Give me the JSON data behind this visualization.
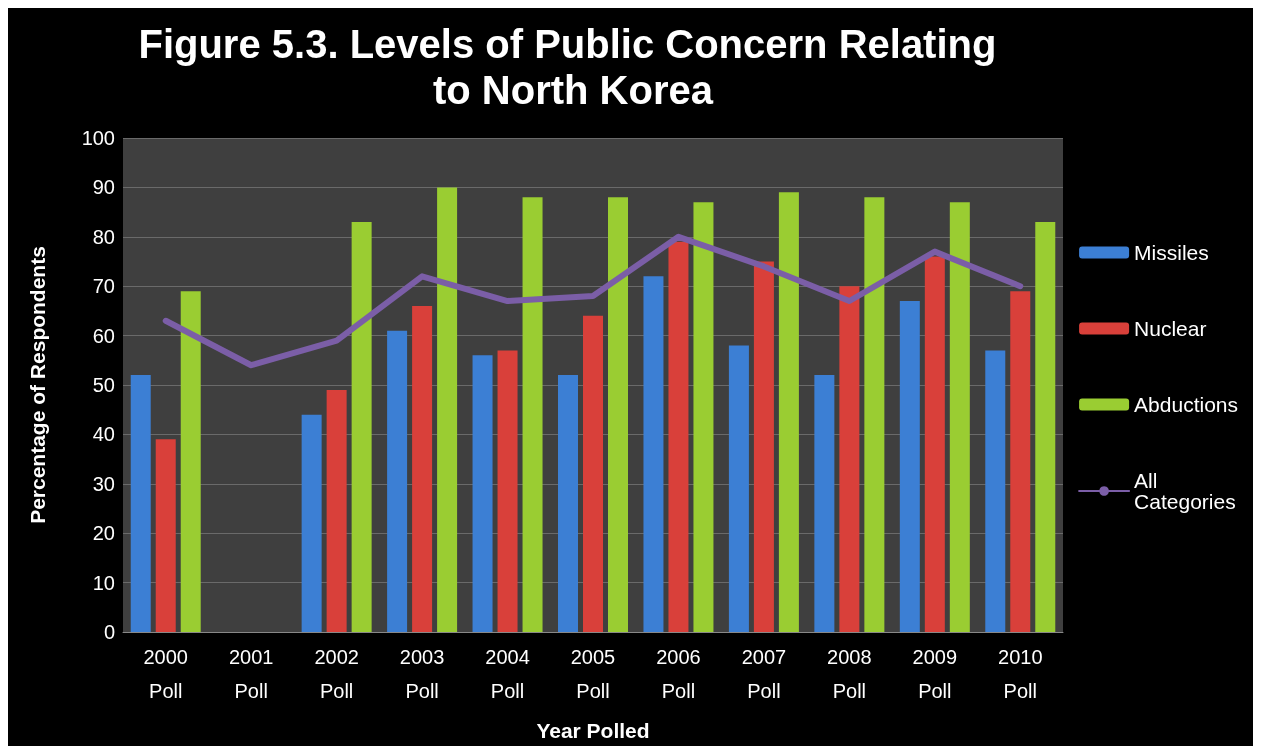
{
  "chart_data": {
    "type": "bar",
    "title": "Figure 5.3. Levels of Public Concern Relating to North Korea",
    "xlabel": "Year Polled",
    "ylabel": "Percentage of Respondents",
    "categories": [
      "2000\nPoll",
      "2001\nPoll",
      "2002\nPoll",
      "2003\nPoll",
      "2004\nPoll",
      "2005\nPoll",
      "2006\nPoll",
      "2007\nPoll",
      "2008\nPoll",
      "2009\nPoll",
      "2010\nPoll"
    ],
    "series": [
      {
        "name": "Missiles",
        "color": "#3c7fd4",
        "values": [
          52,
          null,
          44,
          61,
          56,
          52,
          72,
          58,
          52,
          67,
          57
        ]
      },
      {
        "name": "Nuclear",
        "color": "#d9403a",
        "values": [
          39,
          null,
          49,
          66,
          57,
          64,
          79,
          75,
          70,
          76,
          69
        ]
      },
      {
        "name": "Abductions",
        "color": "#9acd32",
        "values": [
          69,
          null,
          83,
          90,
          88,
          88,
          87,
          89,
          88,
          87,
          83
        ]
      },
      {
        "name": "All Categories",
        "type": "line",
        "color": "#7b5ea7",
        "marker": "none",
        "values": [
          63,
          54,
          59,
          72,
          67,
          68,
          80,
          74,
          67,
          77,
          70
        ]
      }
    ],
    "ylim": [
      0,
      100
    ],
    "yticks": [
      0,
      10,
      20,
      30,
      40,
      50,
      60,
      70,
      80,
      90,
      100
    ],
    "grid": "y",
    "legend": "right"
  }
}
